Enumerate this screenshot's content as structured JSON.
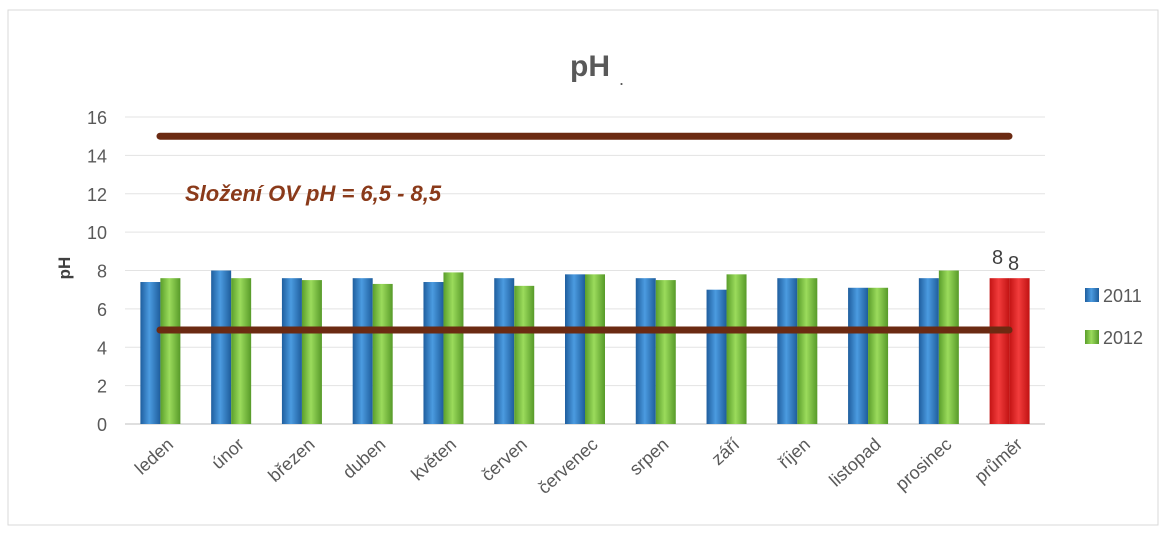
{
  "chart_data": {
    "type": "bar",
    "title": "pH",
    "title_suffix": ".",
    "ylabel": "pH",
    "xlabel": "",
    "ylim": [
      0,
      16
    ],
    "yticks": [
      0,
      2,
      4,
      6,
      8,
      10,
      12,
      14,
      16
    ],
    "grid": true,
    "legend_position": "right",
    "categories": [
      "leden",
      "únor",
      "březen",
      "duben",
      "květen",
      "červen",
      "červenec",
      "srpen",
      "září",
      "říjen",
      "listopad",
      "prosinec",
      "průměr"
    ],
    "series": [
      {
        "name": "2011",
        "color": "#2e7ac4",
        "values": [
          7.4,
          8.0,
          7.6,
          7.6,
          7.4,
          7.6,
          7.8,
          7.6,
          7.0,
          7.6,
          7.1,
          7.6,
          7.6
        ]
      },
      {
        "name": "2012",
        "color": "#7cc243",
        "values": [
          7.6,
          7.6,
          7.5,
          7.3,
          7.9,
          7.2,
          7.8,
          7.5,
          7.8,
          7.6,
          7.1,
          8.0,
          7.6
        ]
      }
    ],
    "highlight": {
      "category": "průměr",
      "color": "#e02121"
    },
    "data_labels": [
      {
        "category": "průměr",
        "series": "2011",
        "text": "8"
      },
      {
        "category": "průměr",
        "series": "2012",
        "text": "8"
      }
    ],
    "reference_lines": [
      {
        "value": 15,
        "color": "#6b2a12"
      },
      {
        "value": 4.9,
        "color": "#6b2a12"
      }
    ],
    "annotation": "Složení OV pH = 6,5 - 8,5",
    "annotation_color": "#8a3a1a"
  }
}
